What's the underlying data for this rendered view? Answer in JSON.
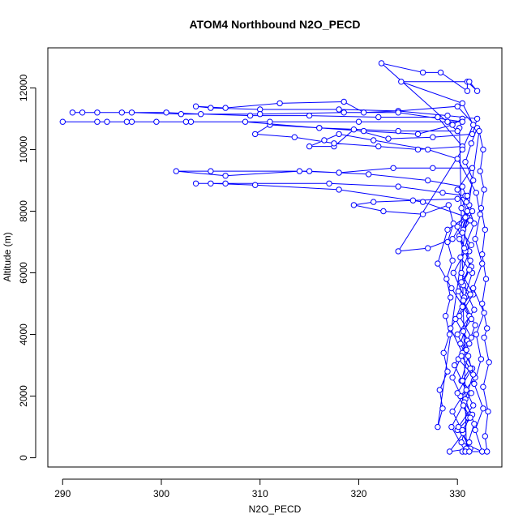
{
  "chart_data": {
    "type": "scatter",
    "title": "ATOM4 Northbound N2O_PECD",
    "xlabel": "N2O_PECD",
    "ylabel": "Altitude (m)",
    "xlim": [
      288.5,
      334.5
    ],
    "ylim": [
      -300,
      13300
    ],
    "x_ticks": [
      290,
      300,
      310,
      320,
      330
    ],
    "x_tick_labels": [
      "290",
      "300",
      "310",
      "320",
      "330"
    ],
    "y_ticks": [
      0,
      2000,
      4000,
      6000,
      8000,
      10000,
      12000
    ],
    "y_tick_labels": [
      "0",
      "2000",
      "4000",
      "6000",
      "8000",
      "10000",
      "12000"
    ],
    "grid": false,
    "series": [
      {
        "marker": "open-circle",
        "line": true,
        "color": "#0000ff",
        "points": [
          [
            330.5,
            200
          ],
          [
            331.2,
            500
          ],
          [
            330.0,
            900
          ],
          [
            331.5,
            1400
          ],
          [
            330.3,
            2000
          ],
          [
            331.8,
            2600
          ],
          [
            330.1,
            3200
          ],
          [
            331.4,
            3900
          ],
          [
            330.2,
            4600
          ],
          [
            331.6,
            5300
          ],
          [
            330.4,
            6000
          ],
          [
            331.2,
            6700
          ],
          [
            330.6,
            7400
          ],
          [
            331.5,
            8000
          ],
          [
            330.8,
            8500
          ],
          [
            328.5,
            8600
          ],
          [
            324.0,
            8800
          ],
          [
            317.0,
            8900
          ],
          [
            306.5,
            8900
          ],
          [
            303.5,
            8900
          ],
          [
            305.0,
            8900
          ],
          [
            309.5,
            8850
          ],
          [
            318.0,
            8700
          ],
          [
            326.5,
            8300
          ],
          [
            331.0,
            7800
          ],
          [
            330.2,
            7200
          ],
          [
            331.3,
            6400
          ],
          [
            330.6,
            5600
          ],
          [
            331.7,
            4800
          ],
          [
            330.0,
            4000
          ],
          [
            331.1,
            3300
          ],
          [
            330.4,
            2500
          ],
          [
            331.6,
            1700
          ],
          [
            330.1,
            1000
          ],
          [
            331.3,
            300
          ],
          [
            329.2,
            200
          ],
          [
            330.6,
            800
          ],
          [
            329.5,
            1500
          ],
          [
            330.9,
            2200
          ],
          [
            329.7,
            3000
          ],
          [
            331.0,
            3800
          ],
          [
            329.8,
            4500
          ],
          [
            330.7,
            5200
          ],
          [
            329.6,
            6000
          ],
          [
            330.8,
            6700
          ],
          [
            330.0,
            7500
          ],
          [
            331.2,
            8200
          ],
          [
            330.5,
            8800
          ],
          [
            327.0,
            9000
          ],
          [
            321.0,
            9200
          ],
          [
            315.0,
            9300
          ],
          [
            305.0,
            9300
          ],
          [
            301.5,
            9300
          ],
          [
            306.5,
            9150
          ],
          [
            314.0,
            9300
          ],
          [
            318.0,
            9250
          ],
          [
            323.5,
            9400
          ],
          [
            327.5,
            9400
          ],
          [
            331.5,
            9400
          ],
          [
            330.0,
            8700
          ],
          [
            331.0,
            8000
          ],
          [
            330.2,
            7100
          ],
          [
            331.4,
            6200
          ],
          [
            330.1,
            5400
          ],
          [
            331.2,
            4600
          ],
          [
            330.3,
            3700
          ],
          [
            331.5,
            2900
          ],
          [
            330.0,
            2100
          ],
          [
            331.1,
            1300
          ],
          [
            330.4,
            500
          ],
          [
            332.5,
            200
          ],
          [
            331.8,
            900
          ],
          [
            332.6,
            1600
          ],
          [
            331.7,
            2400
          ],
          [
            332.4,
            3200
          ],
          [
            331.9,
            4000
          ],
          [
            332.7,
            4700
          ],
          [
            331.6,
            5500
          ],
          [
            332.5,
            6300
          ],
          [
            331.8,
            7100
          ],
          [
            332.3,
            7900
          ],
          [
            331.9,
            8600
          ],
          [
            330.0,
            9700
          ],
          [
            327.0,
            10000
          ],
          [
            321.5,
            10300
          ],
          [
            318.0,
            10500
          ],
          [
            316.5,
            10300
          ],
          [
            315.0,
            10100
          ],
          [
            317.5,
            10100
          ],
          [
            319.5,
            10650
          ],
          [
            323.0,
            10350
          ],
          [
            327.5,
            10400
          ],
          [
            331.5,
            10500
          ],
          [
            332.0,
            11000
          ],
          [
            329.0,
            11100
          ],
          [
            324.0,
            11250
          ],
          [
            318.0,
            11300
          ],
          [
            310.0,
            11300
          ],
          [
            305.0,
            11350
          ],
          [
            303.5,
            11400
          ],
          [
            306.5,
            11350
          ],
          [
            312.0,
            11500
          ],
          [
            318.5,
            11550
          ],
          [
            320.5,
            11200
          ],
          [
            324.0,
            11250
          ],
          [
            330.0,
            11400
          ],
          [
            332.0,
            10700
          ],
          [
            331.4,
            10200
          ],
          [
            330.8,
            9600
          ],
          [
            331.6,
            9000
          ],
          [
            330.9,
            8300
          ],
          [
            331.7,
            7600
          ],
          [
            330.7,
            6800
          ],
          [
            331.5,
            6000
          ],
          [
            330.6,
            5100
          ],
          [
            331.8,
            4300
          ],
          [
            330.9,
            3500
          ],
          [
            331.6,
            2700
          ],
          [
            330.8,
            1900
          ],
          [
            331.7,
            1100
          ],
          [
            330.9,
            300
          ],
          [
            330.2,
            10700
          ],
          [
            330.5,
            11000
          ],
          [
            329.5,
            10800
          ],
          [
            326.0,
            10500
          ],
          [
            320.5,
            10600
          ],
          [
            316.0,
            10700
          ],
          [
            311.0,
            10800
          ],
          [
            309.5,
            10500
          ],
          [
            313.5,
            10400
          ],
          [
            317.5,
            10200
          ],
          [
            322.0,
            10100
          ],
          [
            326.0,
            10000
          ],
          [
            330.5,
            10100
          ],
          [
            328.0,
            11050
          ],
          [
            322.0,
            11050
          ],
          [
            315.0,
            11100
          ],
          [
            309.0,
            11100
          ],
          [
            304.0,
            11150
          ],
          [
            300.5,
            11200
          ],
          [
            296.0,
            11200
          ],
          [
            293.5,
            11200
          ],
          [
            291.0,
            11200
          ],
          [
            292.0,
            11200
          ],
          [
            297.0,
            11200
          ],
          [
            302.0,
            11150
          ],
          [
            310.0,
            11150
          ],
          [
            318.5,
            11200
          ],
          [
            324.0,
            11200
          ],
          [
            330.5,
            10900
          ],
          [
            329.0,
            10900
          ],
          [
            320.0,
            10900
          ],
          [
            311.0,
            10900
          ],
          [
            303.0,
            10900
          ],
          [
            299.5,
            10900
          ],
          [
            296.5,
            10900
          ],
          [
            293.5,
            10900
          ],
          [
            290.0,
            10900
          ],
          [
            294.5,
            10900
          ],
          [
            297.0,
            10900
          ],
          [
            302.5,
            10900
          ],
          [
            308.5,
            10900
          ],
          [
            316.0,
            10700
          ],
          [
            324.0,
            10600
          ],
          [
            330.0,
            10600
          ],
          [
            322.3,
            12800
          ],
          [
            326.5,
            12500
          ],
          [
            328.3,
            12500
          ],
          [
            331.0,
            11900
          ],
          [
            331.0,
            12200
          ],
          [
            332.0,
            11900
          ],
          [
            331.2,
            12200
          ],
          [
            324.3,
            12200
          ],
          [
            330.5,
            11500
          ],
          [
            331.6,
            10800
          ],
          [
            330.5,
            10000
          ],
          [
            324.0,
            6700
          ],
          [
            327.0,
            6800
          ],
          [
            329.5,
            7100
          ],
          [
            330.8,
            7800
          ],
          [
            329.0,
            7400
          ],
          [
            328.0,
            6300
          ],
          [
            329.4,
            5500
          ],
          [
            330.6,
            4900
          ],
          [
            329.3,
            4200
          ],
          [
            330.5,
            3400
          ],
          [
            329.5,
            2600
          ],
          [
            330.7,
            1800
          ],
          [
            329.4,
            1000
          ],
          [
            330.8,
            200
          ],
          [
            333.0,
            200
          ],
          [
            332.8,
            700
          ],
          [
            333.1,
            1500
          ],
          [
            332.6,
            2300
          ],
          [
            333.2,
            3100
          ],
          [
            332.7,
            3900
          ],
          [
            333.0,
            4200
          ],
          [
            332.5,
            5000
          ],
          [
            332.9,
            5800
          ],
          [
            332.5,
            6600
          ],
          [
            332.8,
            7400
          ],
          [
            332.4,
            8100
          ],
          [
            332.7,
            8700
          ],
          [
            332.3,
            9300
          ],
          [
            332.6,
            10000
          ],
          [
            332.2,
            10600
          ],
          [
            328.0,
            1000
          ],
          [
            328.5,
            1600
          ],
          [
            328.2,
            2200
          ],
          [
            329.0,
            2800
          ],
          [
            328.6,
            3400
          ],
          [
            329.2,
            4000
          ],
          [
            328.8,
            4600
          ],
          [
            329.3,
            5200
          ],
          [
            328.9,
            5800
          ],
          [
            329.5,
            6400
          ],
          [
            329.0,
            7000
          ],
          [
            329.6,
            7600
          ],
          [
            329.1,
            8200
          ],
          [
            326.5,
            7900
          ],
          [
            322.5,
            8000
          ],
          [
            319.5,
            8200
          ],
          [
            321.5,
            8300
          ],
          [
            325.5,
            8350
          ],
          [
            330.0,
            8400
          ],
          [
            331.0,
            8500
          ],
          [
            330.4,
            8100
          ],
          [
            331.3,
            7700
          ],
          [
            330.5,
            7300
          ],
          [
            331.4,
            6900
          ],
          [
            330.3,
            6500
          ],
          [
            331.2,
            6100
          ],
          [
            330.4,
            5700
          ],
          [
            331.3,
            5300
          ],
          [
            330.5,
            4900
          ],
          [
            331.4,
            4500
          ],
          [
            330.6,
            4100
          ],
          [
            331.2,
            3700
          ],
          [
            330.4,
            3300
          ],
          [
            331.3,
            2900
          ],
          [
            330.5,
            2500
          ],
          [
            331.4,
            2100
          ],
          [
            330.6,
            1700
          ],
          [
            331.3,
            1300
          ],
          [
            330.5,
            900
          ],
          [
            331.2,
            200
          ]
        ]
      }
    ]
  }
}
